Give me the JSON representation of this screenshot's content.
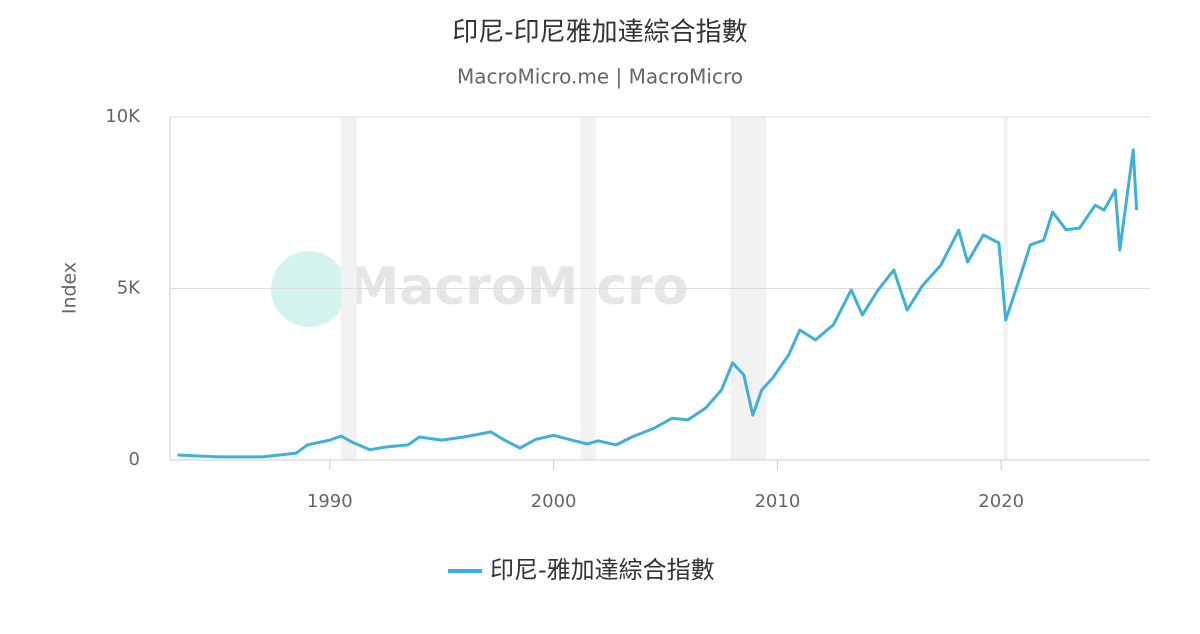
{
  "chart_data": {
    "type": "line",
    "title": "印尼-印尼雅加達綜合指數",
    "subtitle": "MacroMicro.me | MacroMicro",
    "watermark": "MacroMicro",
    "y_label": "Index",
    "x": [
      1983.2,
      1985,
      1987,
      1988.5,
      1989,
      1990,
      1990.5,
      1991,
      1991.8,
      1992.5,
      1993.5,
      1994,
      1995,
      1996,
      1997.2,
      1997.8,
      1998.5,
      1999.2,
      2000,
      2000.8,
      2001.5,
      2002,
      2002.8,
      2003.5,
      2004.5,
      2005.3,
      2006,
      2006.8,
      2007.5,
      2008,
      2008.5,
      2008.9,
      2009.3,
      2009.8,
      2010.5,
      2011,
      2011.7,
      2012.5,
      2013.3,
      2013.8,
      2014.5,
      2015.2,
      2015.8,
      2016.5,
      2017.3,
      2018.1,
      2018.5,
      2019.2,
      2019.9,
      2020.2,
      2020.8,
      2021.3,
      2021.9,
      2022.3,
      2022.9,
      2023.5,
      2024.2,
      2024.6,
      2025.1,
      2025.3,
      2025.6,
      2025.9,
      2026.05
    ],
    "series": [
      {
        "name": "印尼-雅加達綜合指數",
        "color": "#3fb0d8",
        "values": [
          145,
          90,
          90,
          200,
          440,
          580,
          700,
          520,
          300,
          380,
          440,
          670,
          580,
          670,
          820,
          580,
          350,
          600,
          720,
          580,
          470,
          560,
          440,
          670,
          930,
          1220,
          1170,
          1520,
          2040,
          2830,
          2480,
          1310,
          2040,
          2400,
          3060,
          3790,
          3500,
          3940,
          4960,
          4230,
          4960,
          5540,
          4370,
          5100,
          5680,
          6700,
          5770,
          6560,
          6330,
          4080,
          5250,
          6270,
          6410,
          7230,
          6710,
          6760,
          7430,
          7290,
          7870,
          6120,
          7580,
          9040,
          7290
        ]
      }
    ],
    "shaded_periods": [
      [
        1990.5,
        1991.2
      ],
      [
        2001.2,
        2001.9
      ],
      [
        2007.9,
        2009.5
      ],
      [
        2020.1,
        2020.3
      ]
    ],
    "xlim": [
      1982.86,
      2026.65
    ],
    "xticks": [
      1990,
      2000,
      2010,
      2020
    ],
    "ylim": [
      0,
      10000
    ],
    "yticks": [
      {
        "value": 0,
        "label": "0"
      },
      {
        "value": 5000,
        "label": "5K"
      },
      {
        "value": 10000,
        "label": "10K"
      }
    ],
    "grid": true,
    "legend": "bottom"
  }
}
